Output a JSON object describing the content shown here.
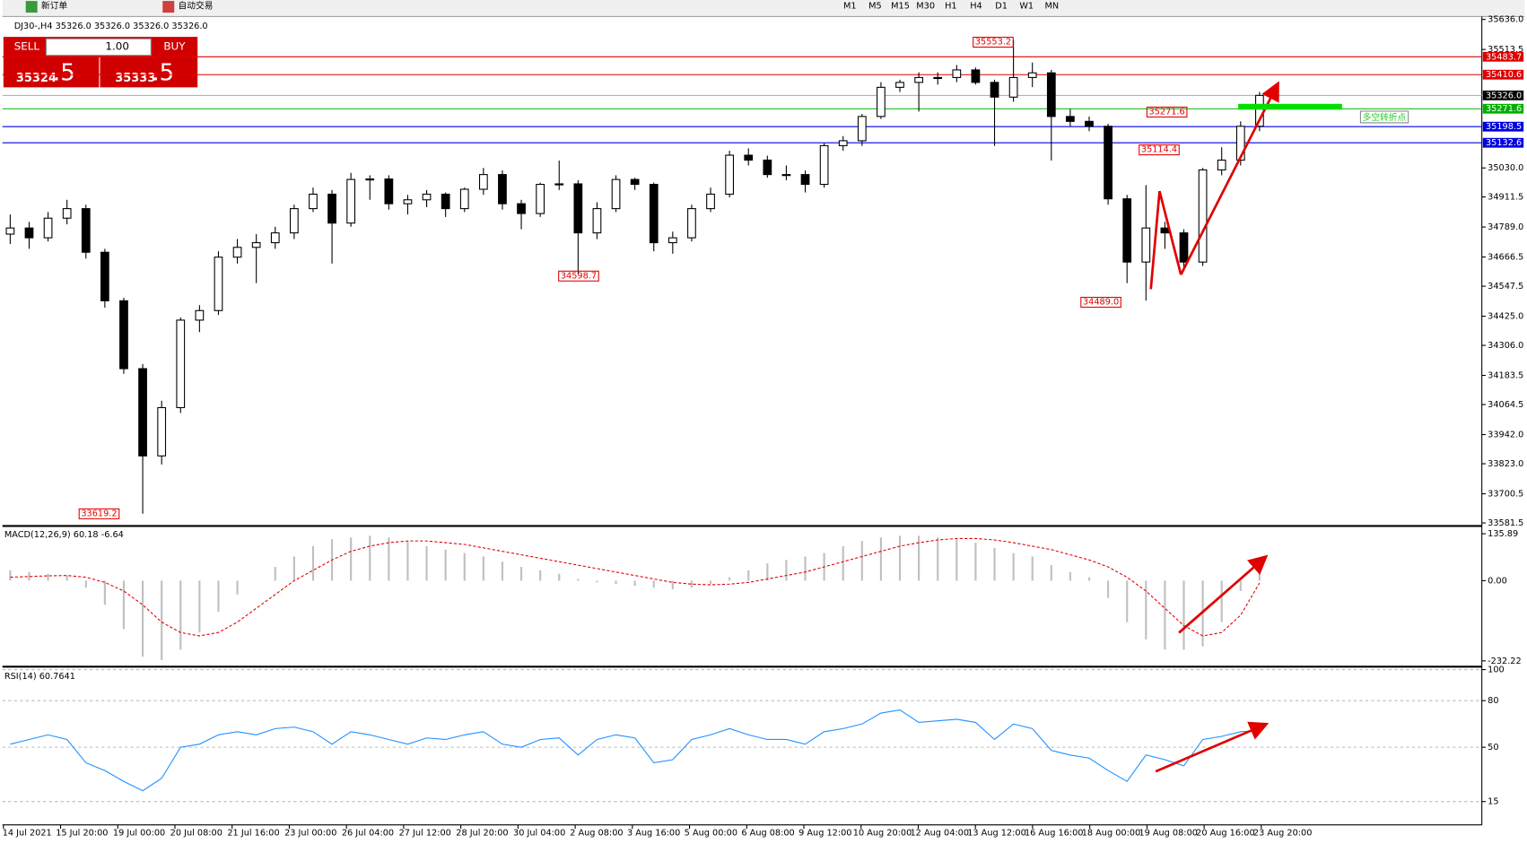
{
  "toolbar": {
    "new_order": "新订单",
    "auto_trading": "自动交易",
    "timeframes": [
      "M1",
      "M5",
      "M15",
      "M30",
      "H1",
      "H4",
      "D1",
      "W1",
      "MN"
    ]
  },
  "trade_panel": {
    "sell": "SELL",
    "buy": "BUY",
    "lot": "1.00",
    "bid_main": "35324",
    "bid_tail": ".5",
    "ask_main": "35333",
    "ask_tail": ".5"
  },
  "chart_data": [
    {
      "type": "candlestick",
      "title": "DJ30-,H4 35326.0 35326.0 35326.0 35326.0",
      "ohlc": [
        [
          34760,
          34840,
          34720,
          34785
        ],
        [
          34785,
          34810,
          34700,
          34745
        ],
        [
          34745,
          34850,
          34730,
          34825
        ],
        [
          34825,
          34900,
          34800,
          34864
        ],
        [
          34864,
          34880,
          34660,
          34686
        ],
        [
          34686,
          34700,
          34460,
          34488
        ],
        [
          34488,
          34500,
          34190,
          34211
        ],
        [
          34211,
          34230,
          33619.2,
          33855
        ],
        [
          33855,
          34080,
          33820,
          34052
        ],
        [
          34052,
          34420,
          34030,
          34409
        ],
        [
          34409,
          34470,
          34360,
          34448
        ],
        [
          34448,
          34690,
          34430,
          34666
        ],
        [
          34666,
          34740,
          34640,
          34706
        ],
        [
          34706,
          34760,
          34560,
          34725
        ],
        [
          34725,
          34790,
          34700,
          34765
        ],
        [
          34765,
          34880,
          34740,
          34864
        ],
        [
          34864,
          34950,
          34850,
          34923
        ],
        [
          34923,
          34940,
          34640,
          34805
        ],
        [
          34805,
          35010,
          34790,
          34983
        ],
        [
          34983,
          35000,
          34900,
          34985
        ],
        [
          34985,
          35000,
          34860,
          34884
        ],
        [
          34884,
          34920,
          34840,
          34900
        ],
        [
          34900,
          34940,
          34870,
          34923
        ],
        [
          34923,
          34930,
          34830,
          34864
        ],
        [
          34864,
          34950,
          34850,
          34943
        ],
        [
          34943,
          35030,
          34920,
          35003
        ],
        [
          35003,
          35020,
          34860,
          34884
        ],
        [
          34884,
          34900,
          34780,
          34844
        ],
        [
          34844,
          34970,
          34830,
          34963
        ],
        [
          34963,
          35060,
          34940,
          34965
        ],
        [
          34965,
          34980,
          34598.7,
          34765
        ],
        [
          34765,
          34890,
          34740,
          34864
        ],
        [
          34864,
          35000,
          34850,
          34983
        ],
        [
          34983,
          34990,
          34940,
          34963
        ],
        [
          34963,
          34970,
          34690,
          34725
        ],
        [
          34725,
          34770,
          34680,
          34745
        ],
        [
          34745,
          34880,
          34730,
          34864
        ],
        [
          34864,
          34950,
          34850,
          34923
        ],
        [
          34923,
          35100,
          34910,
          35082
        ],
        [
          35082,
          35110,
          35040,
          35062
        ],
        [
          35062,
          35080,
          34990,
          35003
        ],
        [
          35003,
          35040,
          34980,
          35003
        ],
        [
          35003,
          35020,
          34930,
          34963
        ],
        [
          34963,
          35130,
          34950,
          35121
        ],
        [
          35121,
          35160,
          35100,
          35141
        ],
        [
          35141,
          35250,
          35120,
          35240
        ],
        [
          35240,
          35380,
          35230,
          35359
        ],
        [
          35359,
          35390,
          35340,
          35379
        ],
        [
          35379,
          35420,
          35260,
          35399
        ],
        [
          35399,
          35420,
          35370,
          35399
        ],
        [
          35399,
          35450,
          35380,
          35430
        ],
        [
          35430,
          35440,
          35370,
          35379
        ],
        [
          35379,
          35390,
          35120,
          35319
        ],
        [
          35319,
          35553.2,
          35300,
          35399
        ],
        [
          35399,
          35460,
          35360,
          35418
        ],
        [
          35418,
          35430,
          35060,
          35240
        ],
        [
          35240,
          35270,
          35200,
          35220
        ],
        [
          35220,
          35240,
          35180,
          35200
        ],
        [
          35200,
          35210,
          34880,
          34904
        ],
        [
          34904,
          34920,
          34560,
          34646
        ],
        [
          34646,
          34960,
          34489,
          34785
        ],
        [
          34785,
          34810,
          34700,
          34765
        ],
        [
          34765,
          34780,
          34620,
          34646
        ],
        [
          34646,
          35030,
          34630,
          35022
        ],
        [
          35022,
          35114.4,
          35000,
          35062
        ],
        [
          35062,
          35220,
          35040,
          35200
        ],
        [
          35200,
          35340,
          35180,
          35326
        ]
      ],
      "ylim": [
        33573,
        35644
      ],
      "yticks": [
        {
          "value": 35636,
          "label": "35636.0"
        },
        35513.5,
        {
          "value": 35030,
          "label": "35030.0"
        },
        34911.5,
        {
          "value": 34789,
          "label": "34789.0"
        },
        34666.5,
        34547.5,
        {
          "value": 34425,
          "label": "34425.0"
        },
        {
          "value": 34306,
          "label": "34306.0"
        },
        34183.5,
        34064.5,
        {
          "value": 33942,
          "label": "33942.0"
        },
        {
          "value": 33823,
          "label": "33823.0"
        },
        33700.5,
        33581.5
      ],
      "price_lines": [
        {
          "price": 35483.7,
          "color": "#e00000"
        },
        {
          "price": 35410.6,
          "color": "#e00000"
        },
        {
          "price": {
            "value": 35326,
            "label": "35326.0"
          },
          "color": "#000000"
        },
        {
          "price": 35271.6,
          "color": "#00b000"
        },
        {
          "price": 35198.5,
          "color": "#0000e0"
        },
        {
          "price": 35132.6,
          "color": "#0000e0"
        }
      ],
      "annotations": [
        "35553.2",
        "34598.7",
        "34489.0",
        "33619.2",
        "35114.4",
        "35271.6",
        "多空转折点"
      ],
      "x_labels": [
        "14 Jul 2021",
        "15 Jul 20:00",
        "19 Jul 00:00",
        "20 Jul 08:00",
        "21 Jul 16:00",
        "23 Jul 00:00",
        "26 Jul 04:00",
        "27 Jul 12:00",
        "28 Jul 20:00",
        "30 Jul 04:00",
        "2 Aug 08:00",
        "3 Aug 16:00",
        "5 Aug 00:00",
        "6 Aug 08:00",
        "9 Aug 12:00",
        "10 Aug 20:00",
        "12 Aug 04:00",
        "13 Aug 12:00",
        "16 Aug 16:00",
        "18 Aug 00:00",
        "19 Aug 08:00",
        "20 Aug 16:00",
        "23 Aug 20:00"
      ]
    },
    {
      "type": "macd",
      "title": "MACD(12,26,9) 60.18 -6.64",
      "histogram": [
        30,
        25,
        20,
        15,
        -20,
        -70,
        -140,
        -220,
        -230,
        -200,
        -150,
        -90,
        -40,
        0,
        40,
        70,
        100,
        120,
        125,
        130,
        125,
        115,
        100,
        90,
        80,
        70,
        55,
        40,
        30,
        20,
        5,
        -5,
        -10,
        -15,
        -20,
        -25,
        -20,
        -10,
        10,
        30,
        50,
        60,
        70,
        80,
        100,
        115,
        125,
        130,
        130,
        125,
        120,
        110,
        95,
        80,
        70,
        45,
        25,
        10,
        -50,
        -120,
        -170,
        -200,
        -200,
        -190,
        -120,
        -30,
        60.18
      ],
      "signal": [
        10,
        12,
        14,
        15,
        10,
        -5,
        -30,
        -70,
        -120,
        -150,
        -160,
        -150,
        -120,
        -80,
        -40,
        0,
        30,
        60,
        85,
        100,
        110,
        115,
        115,
        110,
        105,
        95,
        85,
        75,
        65,
        55,
        45,
        35,
        25,
        15,
        5,
        -5,
        -10,
        -12,
        -10,
        -5,
        5,
        15,
        25,
        40,
        55,
        70,
        85,
        100,
        110,
        118,
        122,
        122,
        118,
        110,
        100,
        90,
        75,
        60,
        40,
        10,
        -30,
        -80,
        -130,
        -160,
        -150,
        -100,
        -6.64
      ],
      "color": "#c0c0c0",
      "signal_color": "#e00000",
      "ylim": [
        -232.22,
        135.89
      ],
      "yticks": [
        135.89,
        {
          "value": 0,
          "label": "0.00"
        },
        -232.22
      ]
    },
    {
      "type": "line",
      "title": "RSI(14) 60.7641",
      "values": [
        52,
        55,
        58,
        55,
        40,
        35,
        28,
        22,
        30,
        50,
        52,
        58,
        60,
        58,
        62,
        63,
        60,
        52,
        60,
        58,
        55,
        52,
        56,
        55,
        58,
        60,
        52,
        50,
        55,
        56,
        45,
        55,
        58,
        56,
        40,
        42,
        55,
        58,
        62,
        58,
        55,
        55,
        52,
        60,
        62,
        65,
        72,
        74,
        66,
        67,
        68,
        66,
        55,
        65,
        62,
        48,
        45,
        43,
        35,
        28,
        45,
        42,
        38,
        55,
        57,
        60,
        60.7641
      ],
      "color": "#1e90ff",
      "ylim": [
        0,
        100
      ],
      "yticks": [
        100,
        80,
        50,
        15
      ]
    }
  ]
}
